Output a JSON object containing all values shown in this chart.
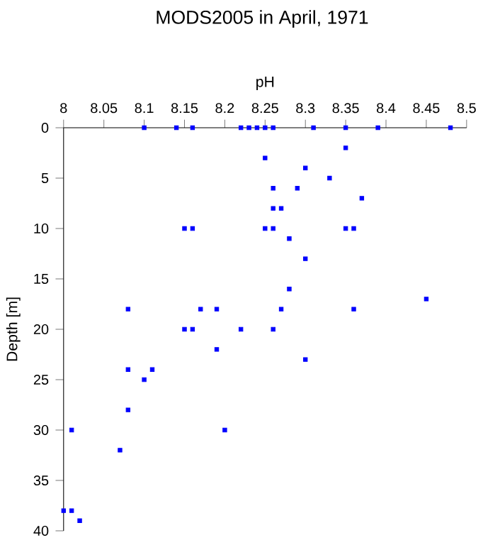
{
  "chart_data": {
    "type": "scatter",
    "title": "MODS2005 in April, 1971",
    "xlabel": "pH",
    "ylabel": "Depth [m]",
    "x": [
      8.1,
      8.14,
      8.16,
      8.22,
      8.23,
      8.24,
      8.25,
      8.26,
      8.31,
      8.35,
      8.39,
      8.48,
      8.35,
      8.25,
      8.3,
      8.33,
      8.26,
      8.29,
      8.37,
      8.26,
      8.27,
      8.15,
      8.16,
      8.25,
      8.26,
      8.35,
      8.36,
      8.28,
      8.3,
      8.28,
      8.45,
      8.08,
      8.17,
      8.19,
      8.27,
      8.36,
      8.15,
      8.16,
      8.22,
      8.26,
      8.19,
      8.3,
      8.08,
      8.11,
      8.1,
      8.08,
      8.01,
      8.2,
      8.07,
      8.0,
      8.01,
      8.02
    ],
    "values": [
      0,
      0,
      0,
      0,
      0,
      0,
      0,
      0,
      0,
      0,
      0,
      0,
      2,
      3,
      4,
      5,
      6,
      6,
      7,
      8,
      8,
      10,
      10,
      10,
      10,
      10,
      10,
      11,
      13,
      16,
      17,
      18,
      18,
      18,
      18,
      18,
      20,
      20,
      20,
      20,
      22,
      23,
      24,
      24,
      25,
      28,
      30,
      30,
      32,
      38,
      38,
      39
    ],
    "color": "#0000ff",
    "marker": "square",
    "xlim": [
      8,
      8.5
    ],
    "xticks": [
      8,
      8.05,
      8.1,
      8.15,
      8.2,
      8.25,
      8.3,
      8.35,
      8.4,
      8.45,
      8.5
    ],
    "ylim": [
      40,
      0
    ],
    "yticks": [
      0,
      5,
      10,
      15,
      20,
      25,
      30,
      35,
      40
    ]
  }
}
